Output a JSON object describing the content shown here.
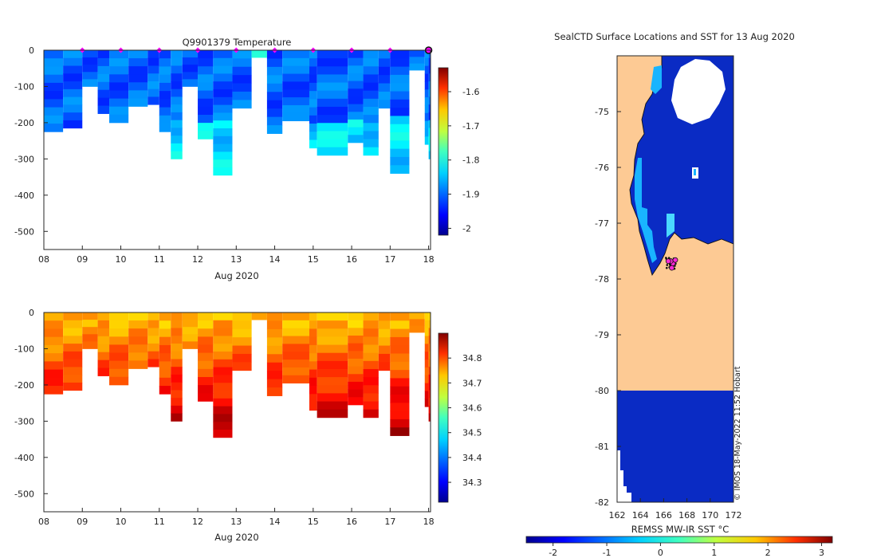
{
  "chart_data": [
    {
      "type": "heatmap",
      "title": "Q9901379  Temperature",
      "xlabel": "Aug 2020",
      "x_ticks": [
        "08",
        "09",
        "10",
        "11",
        "12",
        "13",
        "14",
        "15",
        "16",
        "17",
        "18"
      ],
      "xlim": [
        8,
        18.05
      ],
      "ylim": [
        -550,
        0
      ],
      "y_ticks": [
        0,
        -100,
        -200,
        -300,
        -400,
        -500
      ],
      "colorbar": {
        "ticks": [
          -1.6,
          -1.7,
          -1.8,
          -1.9,
          -2
        ],
        "tick_labels": [
          "-1.6",
          "-1.7",
          "-1.8",
          "-1.9",
          "-2"
        ],
        "range": [
          -2.02,
          -1.53
        ]
      },
      "surface_markers": [
        9,
        10,
        11,
        12,
        13,
        14,
        15,
        16,
        17,
        18
      ],
      "profiles_max_depth": [
        {
          "day": 8.0,
          "depth": 225
        },
        {
          "day": 8.5,
          "depth": 215
        },
        {
          "day": 9.0,
          "depth": 100
        },
        {
          "day": 9.4,
          "depth": 175
        },
        {
          "day": 9.7,
          "depth": 200
        },
        {
          "day": 10.2,
          "depth": 155
        },
        {
          "day": 10.7,
          "depth": 150
        },
        {
          "day": 11.0,
          "depth": 225
        },
        {
          "day": 11.3,
          "depth": 300
        },
        {
          "day": 11.6,
          "depth": 100
        },
        {
          "day": 12.0,
          "depth": 245
        },
        {
          "day": 12.4,
          "depth": 345
        },
        {
          "day": 12.9,
          "depth": 160
        },
        {
          "day": 13.4,
          "depth": 20
        },
        {
          "day": 13.8,
          "depth": 230
        },
        {
          "day": 14.2,
          "depth": 195
        },
        {
          "day": 14.9,
          "depth": 270
        },
        {
          "day": 15.1,
          "depth": 290
        },
        {
          "day": 15.9,
          "depth": 255
        },
        {
          "day": 16.3,
          "depth": 290
        },
        {
          "day": 16.7,
          "depth": 160
        },
        {
          "day": 17.0,
          "depth": 340
        },
        {
          "day": 17.5,
          "depth": 55
        },
        {
          "day": 17.9,
          "depth": 260
        },
        {
          "day": 18.0,
          "depth": 300
        }
      ]
    },
    {
      "type": "heatmap",
      "title": "",
      "xlabel": "Aug 2020",
      "x_ticks": [
        "08",
        "09",
        "10",
        "11",
        "12",
        "13",
        "14",
        "15",
        "16",
        "17",
        "18"
      ],
      "xlim": [
        8,
        18.05
      ],
      "ylim": [
        -550,
        0
      ],
      "y_ticks": [
        0,
        -100,
        -200,
        -300,
        -400,
        -500
      ],
      "colorbar": {
        "ticks": [
          34.8,
          34.7,
          34.6,
          34.5,
          34.4,
          34.3
        ],
        "tick_labels": [
          "34.8",
          "34.7",
          "34.6",
          "34.5",
          "34.4",
          "34.3"
        ],
        "range": [
          34.22,
          34.9
        ]
      }
    },
    {
      "type": "heatmap",
      "title": "SealCTD Surface Locations and SST for 13 Aug 2020",
      "xlabel": "REMSS MW-IR SST °C",
      "x_ticks": [
        "162",
        "164",
        "166",
        "168",
        "170",
        "172"
      ],
      "xlim": [
        162,
        172
      ],
      "y_ticks": [
        "-75",
        "-76",
        "-77",
        "-78",
        "-79",
        "-80",
        "-81",
        "-82"
      ],
      "ylim": [
        -82,
        -74
      ],
      "colorbar": {
        "ticks": [
          "-2",
          "-1",
          "0",
          "1",
          "2",
          "3"
        ],
        "range": [
          -2.5,
          3.2
        ]
      },
      "credit": "© IMOS 18-May-2022 11:52 Hobart",
      "seal_positions": [
        {
          "lon": 166.8,
          "lat": -77.72
        },
        {
          "lon": 166.6,
          "lat": -77.68
        },
        {
          "lon": 166.4,
          "lat": -77.68
        },
        {
          "lon": 167.0,
          "lat": -77.66
        },
        {
          "lon": 166.7,
          "lat": -77.8
        }
      ]
    }
  ]
}
